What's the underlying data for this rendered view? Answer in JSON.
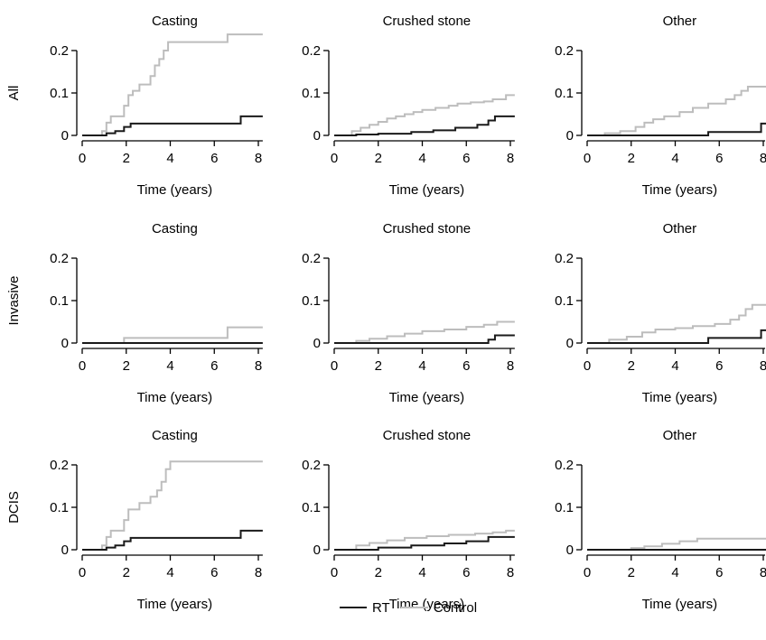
{
  "chart_data": {
    "type": "line",
    "step": true,
    "colors": {
      "RT": "#1a1a1a",
      "Control": "#bdbdbd"
    },
    "legend": [
      {
        "name": "RT",
        "color": "#1a1a1a"
      },
      {
        "name": "Control",
        "color": "#bdbdbd"
      }
    ],
    "xlabel": "Time (years)",
    "xlim": [
      0,
      8.2
    ],
    "ylim": [
      0,
      0.24
    ],
    "xticks": [
      "0",
      "2",
      "4",
      "6",
      "8"
    ],
    "yticks": [
      "0",
      "0.1",
      "0.2"
    ],
    "row_labels": [
      "All",
      "Invasive",
      "DCIS"
    ],
    "col_titles": [
      "Casting",
      "Crushed stone",
      "Other"
    ],
    "panels": [
      {
        "row": "All",
        "title": "Casting",
        "series": [
          {
            "name": "RT",
            "x": [
              0,
              1.1,
              1.5,
              1.9,
              2.2,
              7.2,
              8.2
            ],
            "y": [
              0,
              0.005,
              0.01,
              0.02,
              0.028,
              0.045,
              0.045
            ]
          },
          {
            "name": "Control",
            "x": [
              0,
              0.9,
              1.1,
              1.3,
              1.9,
              2.1,
              2.3,
              2.6,
              3.1,
              3.3,
              3.5,
              3.7,
              3.9,
              4.1,
              6.6,
              8.2
            ],
            "y": [
              0,
              0.01,
              0.03,
              0.045,
              0.07,
              0.095,
              0.105,
              0.12,
              0.14,
              0.165,
              0.18,
              0.2,
              0.22,
              0.22,
              0.238,
              0.238
            ]
          }
        ]
      },
      {
        "row": "All",
        "title": "Crushed stone",
        "series": [
          {
            "name": "RT",
            "x": [
              0,
              1.0,
              2.0,
              3.5,
              4.5,
              5.5,
              6.5,
              7.0,
              7.3,
              8.2
            ],
            "y": [
              0,
              0.002,
              0.004,
              0.008,
              0.012,
              0.018,
              0.025,
              0.035,
              0.045,
              0.045
            ]
          },
          {
            "name": "Control",
            "x": [
              0,
              0.8,
              1.2,
              1.6,
              2.0,
              2.4,
              2.8,
              3.2,
              3.6,
              4.0,
              4.6,
              5.2,
              5.6,
              6.2,
              6.8,
              7.2,
              7.8,
              8.2
            ],
            "y": [
              0,
              0.01,
              0.018,
              0.025,
              0.032,
              0.04,
              0.045,
              0.05,
              0.055,
              0.06,
              0.065,
              0.07,
              0.075,
              0.078,
              0.08,
              0.085,
              0.095,
              0.095
            ]
          }
        ]
      },
      {
        "row": "All",
        "title": "Other",
        "series": [
          {
            "name": "RT",
            "x": [
              0,
              5.5,
              7.9,
              8.2
            ],
            "y": [
              0,
              0.008,
              0.028,
              0.028
            ]
          },
          {
            "name": "Control",
            "x": [
              0,
              0.8,
              1.5,
              2.2,
              2.6,
              3.0,
              3.5,
              4.2,
              4.8,
              5.5,
              6.3,
              6.7,
              7.0,
              7.3,
              8.2
            ],
            "y": [
              0,
              0.005,
              0.01,
              0.02,
              0.03,
              0.038,
              0.045,
              0.055,
              0.065,
              0.075,
              0.085,
              0.095,
              0.105,
              0.115,
              0.115
            ]
          }
        ]
      },
      {
        "row": "Invasive",
        "title": "Casting",
        "series": [
          {
            "name": "RT",
            "x": [
              0,
              8.2
            ],
            "y": [
              0,
              0
            ]
          },
          {
            "name": "Control",
            "x": [
              0,
              1.9,
              6.6,
              8.2
            ],
            "y": [
              0,
              0.012,
              0.037,
              0.037
            ]
          }
        ]
      },
      {
        "row": "Invasive",
        "title": "Crushed stone",
        "series": [
          {
            "name": "RT",
            "x": [
              0,
              7.0,
              7.3,
              8.2
            ],
            "y": [
              0,
              0.008,
              0.018,
              0.018
            ]
          },
          {
            "name": "Control",
            "x": [
              0,
              1.0,
              1.6,
              2.4,
              3.2,
              4.0,
              5.0,
              6.0,
              6.8,
              7.4,
              8.2
            ],
            "y": [
              0,
              0.005,
              0.01,
              0.016,
              0.022,
              0.028,
              0.032,
              0.038,
              0.043,
              0.05,
              0.05
            ]
          }
        ]
      },
      {
        "row": "Invasive",
        "title": "Other",
        "series": [
          {
            "name": "RT",
            "x": [
              0,
              5.5,
              7.9,
              8.2
            ],
            "y": [
              0,
              0.012,
              0.03,
              0.03
            ]
          },
          {
            "name": "Control",
            "x": [
              0,
              1.0,
              1.8,
              2.5,
              3.1,
              4.0,
              4.8,
              5.8,
              6.5,
              6.9,
              7.2,
              7.5,
              8.2
            ],
            "y": [
              0,
              0.008,
              0.015,
              0.025,
              0.032,
              0.035,
              0.04,
              0.045,
              0.055,
              0.065,
              0.08,
              0.09,
              0.09
            ]
          }
        ]
      },
      {
        "row": "DCIS",
        "title": "Casting",
        "series": [
          {
            "name": "RT",
            "x": [
              0,
              1.1,
              1.5,
              1.9,
              2.2,
              7.2,
              8.2
            ],
            "y": [
              0,
              0.005,
              0.01,
              0.02,
              0.028,
              0.045,
              0.045
            ]
          },
          {
            "name": "Control",
            "x": [
              0,
              0.9,
              1.1,
              1.3,
              1.9,
              2.1,
              2.6,
              3.1,
              3.4,
              3.6,
              3.8,
              4.0,
              8.2
            ],
            "y": [
              0,
              0.01,
              0.03,
              0.045,
              0.07,
              0.095,
              0.11,
              0.125,
              0.14,
              0.16,
              0.19,
              0.208,
              0.208
            ]
          }
        ]
      },
      {
        "row": "DCIS",
        "title": "Crushed stone",
        "series": [
          {
            "name": "RT",
            "x": [
              0,
              2.0,
              3.5,
              5.0,
              6.0,
              7.0,
              8.2
            ],
            "y": [
              0,
              0.005,
              0.01,
              0.015,
              0.02,
              0.03,
              0.03
            ]
          },
          {
            "name": "Control",
            "x": [
              0,
              1.0,
              1.6,
              2.4,
              3.2,
              4.2,
              5.2,
              6.4,
              7.2,
              7.8,
              8.2
            ],
            "y": [
              0,
              0.01,
              0.016,
              0.022,
              0.028,
              0.032,
              0.035,
              0.038,
              0.041,
              0.045,
              0.045
            ]
          }
        ]
      },
      {
        "row": "DCIS",
        "title": "Other",
        "series": [
          {
            "name": "RT",
            "x": [
              0,
              8.2
            ],
            "y": [
              0,
              0
            ]
          },
          {
            "name": "Control",
            "x": [
              0,
              2.0,
              2.6,
              3.4,
              4.2,
              5.0,
              8.2
            ],
            "y": [
              0,
              0.004,
              0.008,
              0.014,
              0.02,
              0.026,
              0.026
            ]
          }
        ]
      }
    ]
  }
}
